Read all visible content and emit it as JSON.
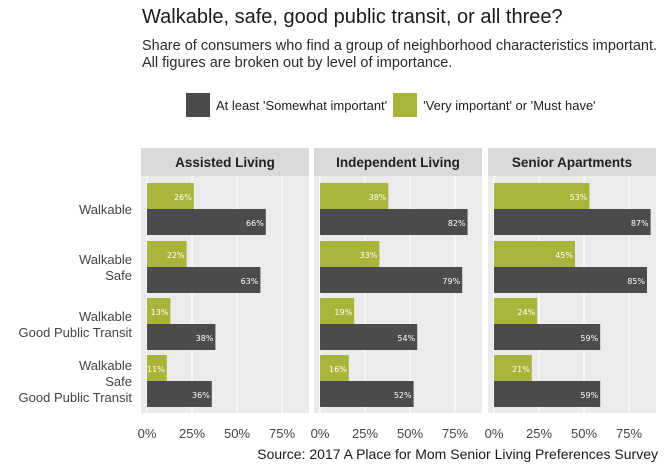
{
  "chart_data": {
    "type": "bar",
    "orientation": "horizontal",
    "title": "Walkable, safe, good public transit, or all three?",
    "subtitle": "Share of consumers who find a group of neighborhood characteristics important. All figures are broken out by level of importance.",
    "source": "Source: 2017 A Place for Mom Senior Living Preferences Survey",
    "legend_position": "top",
    "xlim": [
      0,
      90
    ],
    "x_ticks": [
      "0%",
      "25%",
      "50%",
      "75%"
    ],
    "x_tick_values": [
      0,
      25,
      50,
      75
    ],
    "series_colors": {
      "very": "#a9b53a",
      "atleast": "#4b4b4d"
    },
    "categories": [
      [
        "Walkable"
      ],
      [
        "Walkable",
        "Safe"
      ],
      [
        "Walkable",
        "Good Public Transit"
      ],
      [
        "Walkable",
        "Safe",
        "Good Public Transit"
      ]
    ],
    "series": [
      {
        "name": "At least 'Somewhat important'",
        "key": "atleast"
      },
      {
        "name": "'Very important' or 'Must have'",
        "key": "very"
      }
    ],
    "panels": [
      {
        "title": "Assisted Living",
        "very": [
          26,
          22,
          13,
          11
        ],
        "very_labels": [
          "26%",
          "22%",
          "13%",
          "11%"
        ],
        "atleast": [
          66,
          63,
          38,
          36
        ],
        "atleast_labels": [
          "66%",
          "63%",
          "38%",
          "36%"
        ]
      },
      {
        "title": "Independent Living",
        "very": [
          38,
          33,
          19,
          16
        ],
        "very_labels": [
          "38%",
          "33%",
          "19%",
          "16%"
        ],
        "atleast": [
          82,
          79,
          54,
          52
        ],
        "atleast_labels": [
          "82%",
          "79%",
          "54%",
          "52%"
        ]
      },
      {
        "title": "Senior Apartments",
        "very": [
          53,
          45,
          24,
          21
        ],
        "very_labels": [
          "53%",
          "45%",
          "24%",
          "21%"
        ],
        "atleast": [
          87,
          85,
          59,
          59
        ],
        "atleast_labels": [
          "87%",
          "85%",
          "59%",
          "59%"
        ]
      }
    ]
  }
}
